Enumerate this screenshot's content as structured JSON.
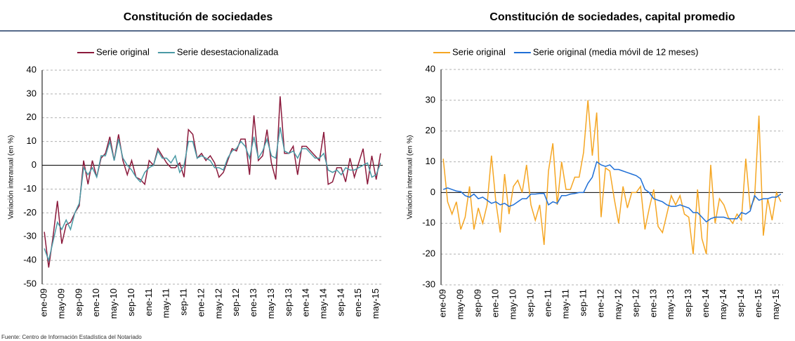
{
  "chart_data": [
    {
      "type": "line",
      "title": "Constitución de sociedades",
      "y_label": "Variación interanual  (en %)",
      "categories": [
        "ene-09",
        null,
        null,
        null,
        "may-09",
        null,
        null,
        null,
        "sep-09",
        null,
        null,
        null,
        "ene-10",
        null,
        null,
        null,
        "may-10",
        null,
        null,
        null,
        "sep-10",
        null,
        null,
        null,
        "ene-11",
        null,
        null,
        null,
        "may-11",
        null,
        null,
        null,
        "sep-11",
        null,
        null,
        null,
        "ene-12",
        null,
        null,
        null,
        "may-12",
        null,
        null,
        null,
        "sep-12",
        null,
        null,
        null,
        "ene-13",
        null,
        null,
        null,
        "may-13",
        null,
        null,
        null,
        "sep-13",
        null,
        null,
        null,
        "ene-14",
        null,
        null,
        null,
        "may-14",
        null,
        null,
        null,
        "sep-14",
        null,
        null,
        null,
        "ene-15",
        null,
        null,
        null,
        "may-15",
        null
      ],
      "ylim": [
        -50,
        40
      ],
      "yticks": [
        -50,
        -40,
        -30,
        -20,
        -10,
        0,
        10,
        20,
        30,
        40
      ],
      "grid": true,
      "legend": "top",
      "series": [
        {
          "name": "Serie original",
          "color": "#8b1a3c",
          "values": [
            -28,
            -43,
            -30,
            -15,
            -33,
            -25,
            -24,
            -20,
            -17,
            2,
            -8,
            2,
            -5,
            3,
            5,
            12,
            2,
            13,
            2,
            -4,
            2,
            -5,
            -6,
            -8,
            2,
            0,
            7,
            4,
            1,
            -1,
            -1,
            1,
            -5,
            15,
            13,
            3,
            5,
            2,
            4,
            1,
            -5,
            -3,
            2,
            7,
            6,
            11,
            11,
            -4,
            21,
            2,
            4,
            15,
            1,
            -6,
            29,
            5,
            5,
            8,
            -4,
            8,
            8,
            6,
            4,
            2,
            14,
            -8,
            -7,
            -1,
            -1,
            -7,
            3,
            -5,
            1,
            7,
            -8,
            4,
            -6,
            5
          ]
        },
        {
          "name": "Serie desestacionalizada",
          "color": "#4a9aa5",
          "values": [
            -35,
            -40,
            -32,
            -24,
            -27,
            -23,
            -27,
            -20,
            -16,
            -1,
            -4,
            -1,
            -5,
            4,
            4,
            10,
            2,
            11,
            3,
            0,
            -2,
            -5,
            -7,
            -3,
            -1,
            0,
            6,
            3,
            3,
            1,
            4,
            -3,
            0,
            10,
            10,
            3,
            4,
            3,
            2,
            -1,
            -1,
            -2,
            3,
            6,
            7,
            10,
            8,
            3,
            12,
            3,
            6,
            11,
            4,
            3,
            16,
            6,
            5,
            6,
            3,
            7,
            7,
            5,
            3,
            3,
            5,
            -2,
            -3,
            -2,
            -4,
            -1,
            -2,
            -2,
            -1,
            0,
            1,
            -5,
            -4,
            1
          ]
        }
      ]
    },
    {
      "type": "line",
      "title": "Constitución de sociedades, capital promedio",
      "y_label": "Variación interanual  (en %)",
      "categories": [
        "ene-09",
        null,
        null,
        null,
        "may-09",
        null,
        null,
        null,
        "sep-09",
        null,
        null,
        null,
        "ene-10",
        null,
        null,
        null,
        "may-10",
        null,
        null,
        null,
        "sep-10",
        null,
        null,
        null,
        "ene-11",
        null,
        null,
        null,
        "may-11",
        null,
        null,
        null,
        "sep-11",
        null,
        null,
        null,
        "ene-12",
        null,
        null,
        null,
        "may-12",
        null,
        null,
        null,
        "sep-12",
        null,
        null,
        null,
        "ene-13",
        null,
        null,
        null,
        "may-13",
        null,
        null,
        null,
        "sep-13",
        null,
        null,
        null,
        "ene-14",
        null,
        null,
        null,
        "may-14",
        null,
        null,
        null,
        "sep-14",
        null,
        null,
        null,
        "ene-15",
        null,
        null,
        null,
        "may-15",
        null
      ],
      "ylim": [
        -30,
        40
      ],
      "yticks": [
        -30,
        -20,
        -10,
        0,
        10,
        20,
        30,
        40
      ],
      "grid": true,
      "legend": "top",
      "series": [
        {
          "name": "Serie original",
          "color": "#f5a623",
          "values": [
            11,
            -3,
            -7,
            -3,
            -12,
            -8,
            2,
            -12,
            -5,
            -10,
            -4,
            12,
            -3,
            -13,
            6,
            -7,
            2,
            4,
            0,
            9,
            -4,
            -9,
            -4,
            -17,
            7,
            16,
            -4,
            10,
            1,
            1,
            5,
            5,
            13,
            30,
            12,
            26,
            -8,
            8,
            7,
            -2,
            -10,
            2,
            -5,
            0,
            0,
            2,
            -12,
            -5,
            1,
            -11,
            -13,
            -7,
            -1,
            -4,
            -1,
            -7,
            -8,
            -20,
            1,
            -15,
            -20,
            9,
            -10,
            -2,
            -4,
            -8,
            -10,
            -7,
            -9,
            11,
            -5,
            -2,
            25,
            -14,
            -2,
            -9,
            0,
            -3
          ]
        },
        {
          "name": "Serie original (media móvil de 12 meses)",
          "color": "#1f6fd6",
          "values": [
            1,
            1.5,
            1,
            0.5,
            0.3,
            -1,
            -1.5,
            -0.5,
            -2,
            -1.5,
            -2.5,
            -3.5,
            -3,
            -4,
            -3.5,
            -4.5,
            -4,
            -3,
            -2,
            -2,
            -0.5,
            -0.5,
            -0.3,
            -0.3,
            -4,
            -3,
            -3.5,
            -1,
            -1,
            -0.5,
            -0.3,
            0,
            0,
            3,
            5,
            10,
            9,
            8.5,
            9,
            7.5,
            7.5,
            7,
            6.5,
            6,
            5.5,
            4.5,
            1,
            0,
            -2,
            -2.5,
            -3,
            -4,
            -4.5,
            -4.5,
            -4,
            -4.5,
            -5,
            -6.5,
            -6.5,
            -8,
            -9.5,
            -8.5,
            -8,
            -8,
            -8,
            -8.5,
            -8.5,
            -8.5,
            -6.5,
            -7,
            -6,
            -1,
            -2.5,
            -2,
            -2,
            -1.5,
            -1.5,
            -0.5
          ]
        }
      ]
    }
  ],
  "source": "Fuente: Centro de Información Estadística del Notariado"
}
